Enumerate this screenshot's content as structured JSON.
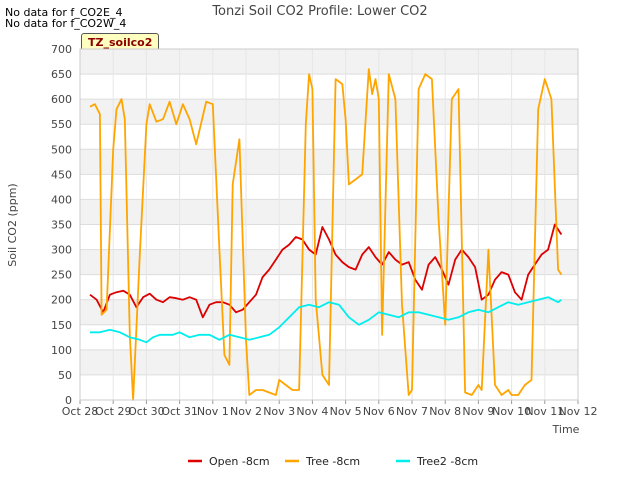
{
  "notes": [
    "No data for f_CO2E_4",
    "No data for f_CO2W_4"
  ],
  "badge": "TZ_soilco2",
  "chart_data": {
    "type": "line",
    "title": "Tonzi Soil CO2 Profile: Lower CO2",
    "xlabel": "Time",
    "ylabel": "Soil CO2 (ppm)",
    "xlim": [
      0,
      15
    ],
    "ylim": [
      0,
      700
    ],
    "x_ticks": [
      {
        "v": 0,
        "label": "Oct 28"
      },
      {
        "v": 1,
        "label": "Oct 29"
      },
      {
        "v": 2,
        "label": "Oct 30"
      },
      {
        "v": 3,
        "label": "Oct 31"
      },
      {
        "v": 4,
        "label": "Nov 1"
      },
      {
        "v": 5,
        "label": "Nov 2"
      },
      {
        "v": 6,
        "label": "Nov 3"
      },
      {
        "v": 7,
        "label": "Nov 4"
      },
      {
        "v": 8,
        "label": "Nov 5"
      },
      {
        "v": 9,
        "label": "Nov 6"
      },
      {
        "v": 10,
        "label": "Nov 7"
      },
      {
        "v": 11,
        "label": "Nov 8"
      },
      {
        "v": 12,
        "label": "Nov 9"
      },
      {
        "v": 13,
        "label": "Nov 10"
      },
      {
        "v": 14,
        "label": "Nov 11"
      },
      {
        "v": 15,
        "label": "Nov 12"
      }
    ],
    "y_ticks": [
      0,
      50,
      100,
      150,
      200,
      250,
      300,
      350,
      400,
      450,
      500,
      550,
      600,
      650,
      700
    ],
    "series": [
      {
        "name": "Open -8cm",
        "color": "#dd0000",
        "x": [
          0.3,
          0.5,
          0.7,
          0.9,
          1.1,
          1.3,
          1.5,
          1.7,
          1.9,
          2.1,
          2.3,
          2.5,
          2.7,
          2.9,
          3.1,
          3.3,
          3.5,
          3.7,
          3.9,
          4.1,
          4.3,
          4.5,
          4.7,
          4.9,
          5.1,
          5.3,
          5.5,
          5.7,
          5.9,
          6.1,
          6.3,
          6.5,
          6.7,
          6.9,
          7.1,
          7.3,
          7.5,
          7.7,
          7.9,
          8.1,
          8.3,
          8.5,
          8.7,
          8.9,
          9.1,
          9.3,
          9.5,
          9.7,
          9.9,
          10.1,
          10.3,
          10.5,
          10.7,
          10.9,
          11.1,
          11.3,
          11.5,
          11.7,
          11.9,
          12.1,
          12.3,
          12.5,
          12.7,
          12.9,
          13.1,
          13.3,
          13.5,
          13.7,
          13.9,
          14.1,
          14.3,
          14.5
        ],
        "values": [
          210,
          200,
          175,
          210,
          215,
          218,
          210,
          185,
          205,
          212,
          200,
          195,
          205,
          203,
          200,
          205,
          200,
          165,
          190,
          195,
          195,
          190,
          175,
          180,
          195,
          210,
          245,
          260,
          280,
          300,
          310,
          325,
          320,
          300,
          290,
          345,
          320,
          290,
          275,
          265,
          260,
          290,
          305,
          285,
          270,
          295,
          280,
          270,
          275,
          240,
          220,
          270,
          285,
          260,
          230,
          280,
          300,
          285,
          265,
          200,
          210,
          240,
          255,
          250,
          215,
          200,
          250,
          270,
          290,
          300,
          350,
          330
        ]
      },
      {
        "name": "Tree -8cm",
        "color": "#ffa500",
        "x": [
          0.3,
          0.45,
          0.6,
          0.65,
          0.8,
          1.0,
          1.1,
          1.25,
          1.35,
          1.5,
          1.6,
          1.8,
          2.0,
          2.1,
          2.3,
          2.5,
          2.7,
          2.9,
          3.1,
          3.3,
          3.5,
          3.8,
          4.0,
          4.2,
          4.35,
          4.5,
          4.6,
          4.8,
          5.0,
          5.1,
          5.3,
          5.5,
          5.7,
          5.9,
          6.0,
          6.2,
          6.4,
          6.6,
          6.8,
          6.9,
          7.0,
          7.1,
          7.3,
          7.5,
          7.7,
          7.9,
          8.0,
          8.1,
          8.3,
          8.5,
          8.7,
          8.8,
          8.9,
          9.0,
          9.1,
          9.3,
          9.5,
          9.7,
          9.9,
          10.0,
          10.2,
          10.4,
          10.6,
          10.8,
          11.0,
          11.2,
          11.4,
          11.6,
          11.8,
          12.0,
          12.1,
          12.3,
          12.5,
          12.7,
          12.9,
          13.0,
          13.2,
          13.4,
          13.6,
          13.8,
          14.0,
          14.2,
          14.4,
          14.5
        ],
        "values": [
          585,
          590,
          570,
          170,
          180,
          500,
          580,
          600,
          560,
          130,
          0,
          290,
          550,
          590,
          555,
          560,
          595,
          550,
          590,
          560,
          510,
          595,
          590,
          300,
          90,
          70,
          430,
          520,
          120,
          10,
          20,
          20,
          15,
          10,
          40,
          30,
          20,
          20,
          550,
          650,
          620,
          200,
          50,
          30,
          640,
          630,
          560,
          430,
          440,
          450,
          660,
          610,
          640,
          600,
          130,
          650,
          600,
          190,
          10,
          20,
          620,
          650,
          640,
          360,
          150,
          600,
          620,
          15,
          10,
          30,
          20,
          300,
          30,
          10,
          20,
          10,
          10,
          30,
          40,
          580,
          640,
          600,
          260,
          250
        ]
      },
      {
        "name": "Tree2 -8cm",
        "color": "#00eeee",
        "x": [
          0.3,
          0.6,
          0.9,
          1.2,
          1.5,
          1.8,
          2.0,
          2.2,
          2.4,
          2.6,
          2.8,
          3.0,
          3.3,
          3.6,
          3.9,
          4.2,
          4.5,
          4.8,
          5.1,
          5.4,
          5.7,
          6.0,
          6.3,
          6.6,
          6.9,
          7.2,
          7.5,
          7.8,
          8.1,
          8.4,
          8.7,
          9.0,
          9.3,
          9.6,
          9.9,
          10.2,
          10.5,
          10.8,
          11.1,
          11.4,
          11.7,
          12.0,
          12.3,
          12.6,
          12.9,
          13.2,
          13.5,
          13.8,
          14.1,
          14.4,
          14.5
        ],
        "values": [
          135,
          135,
          140,
          135,
          125,
          120,
          115,
          125,
          130,
          130,
          130,
          135,
          125,
          130,
          130,
          120,
          130,
          125,
          120,
          125,
          130,
          145,
          165,
          185,
          190,
          185,
          195,
          190,
          165,
          150,
          160,
          175,
          170,
          165,
          175,
          175,
          170,
          165,
          160,
          165,
          175,
          180,
          175,
          185,
          195,
          190,
          195,
          200,
          205,
          195,
          200
        ]
      }
    ]
  }
}
